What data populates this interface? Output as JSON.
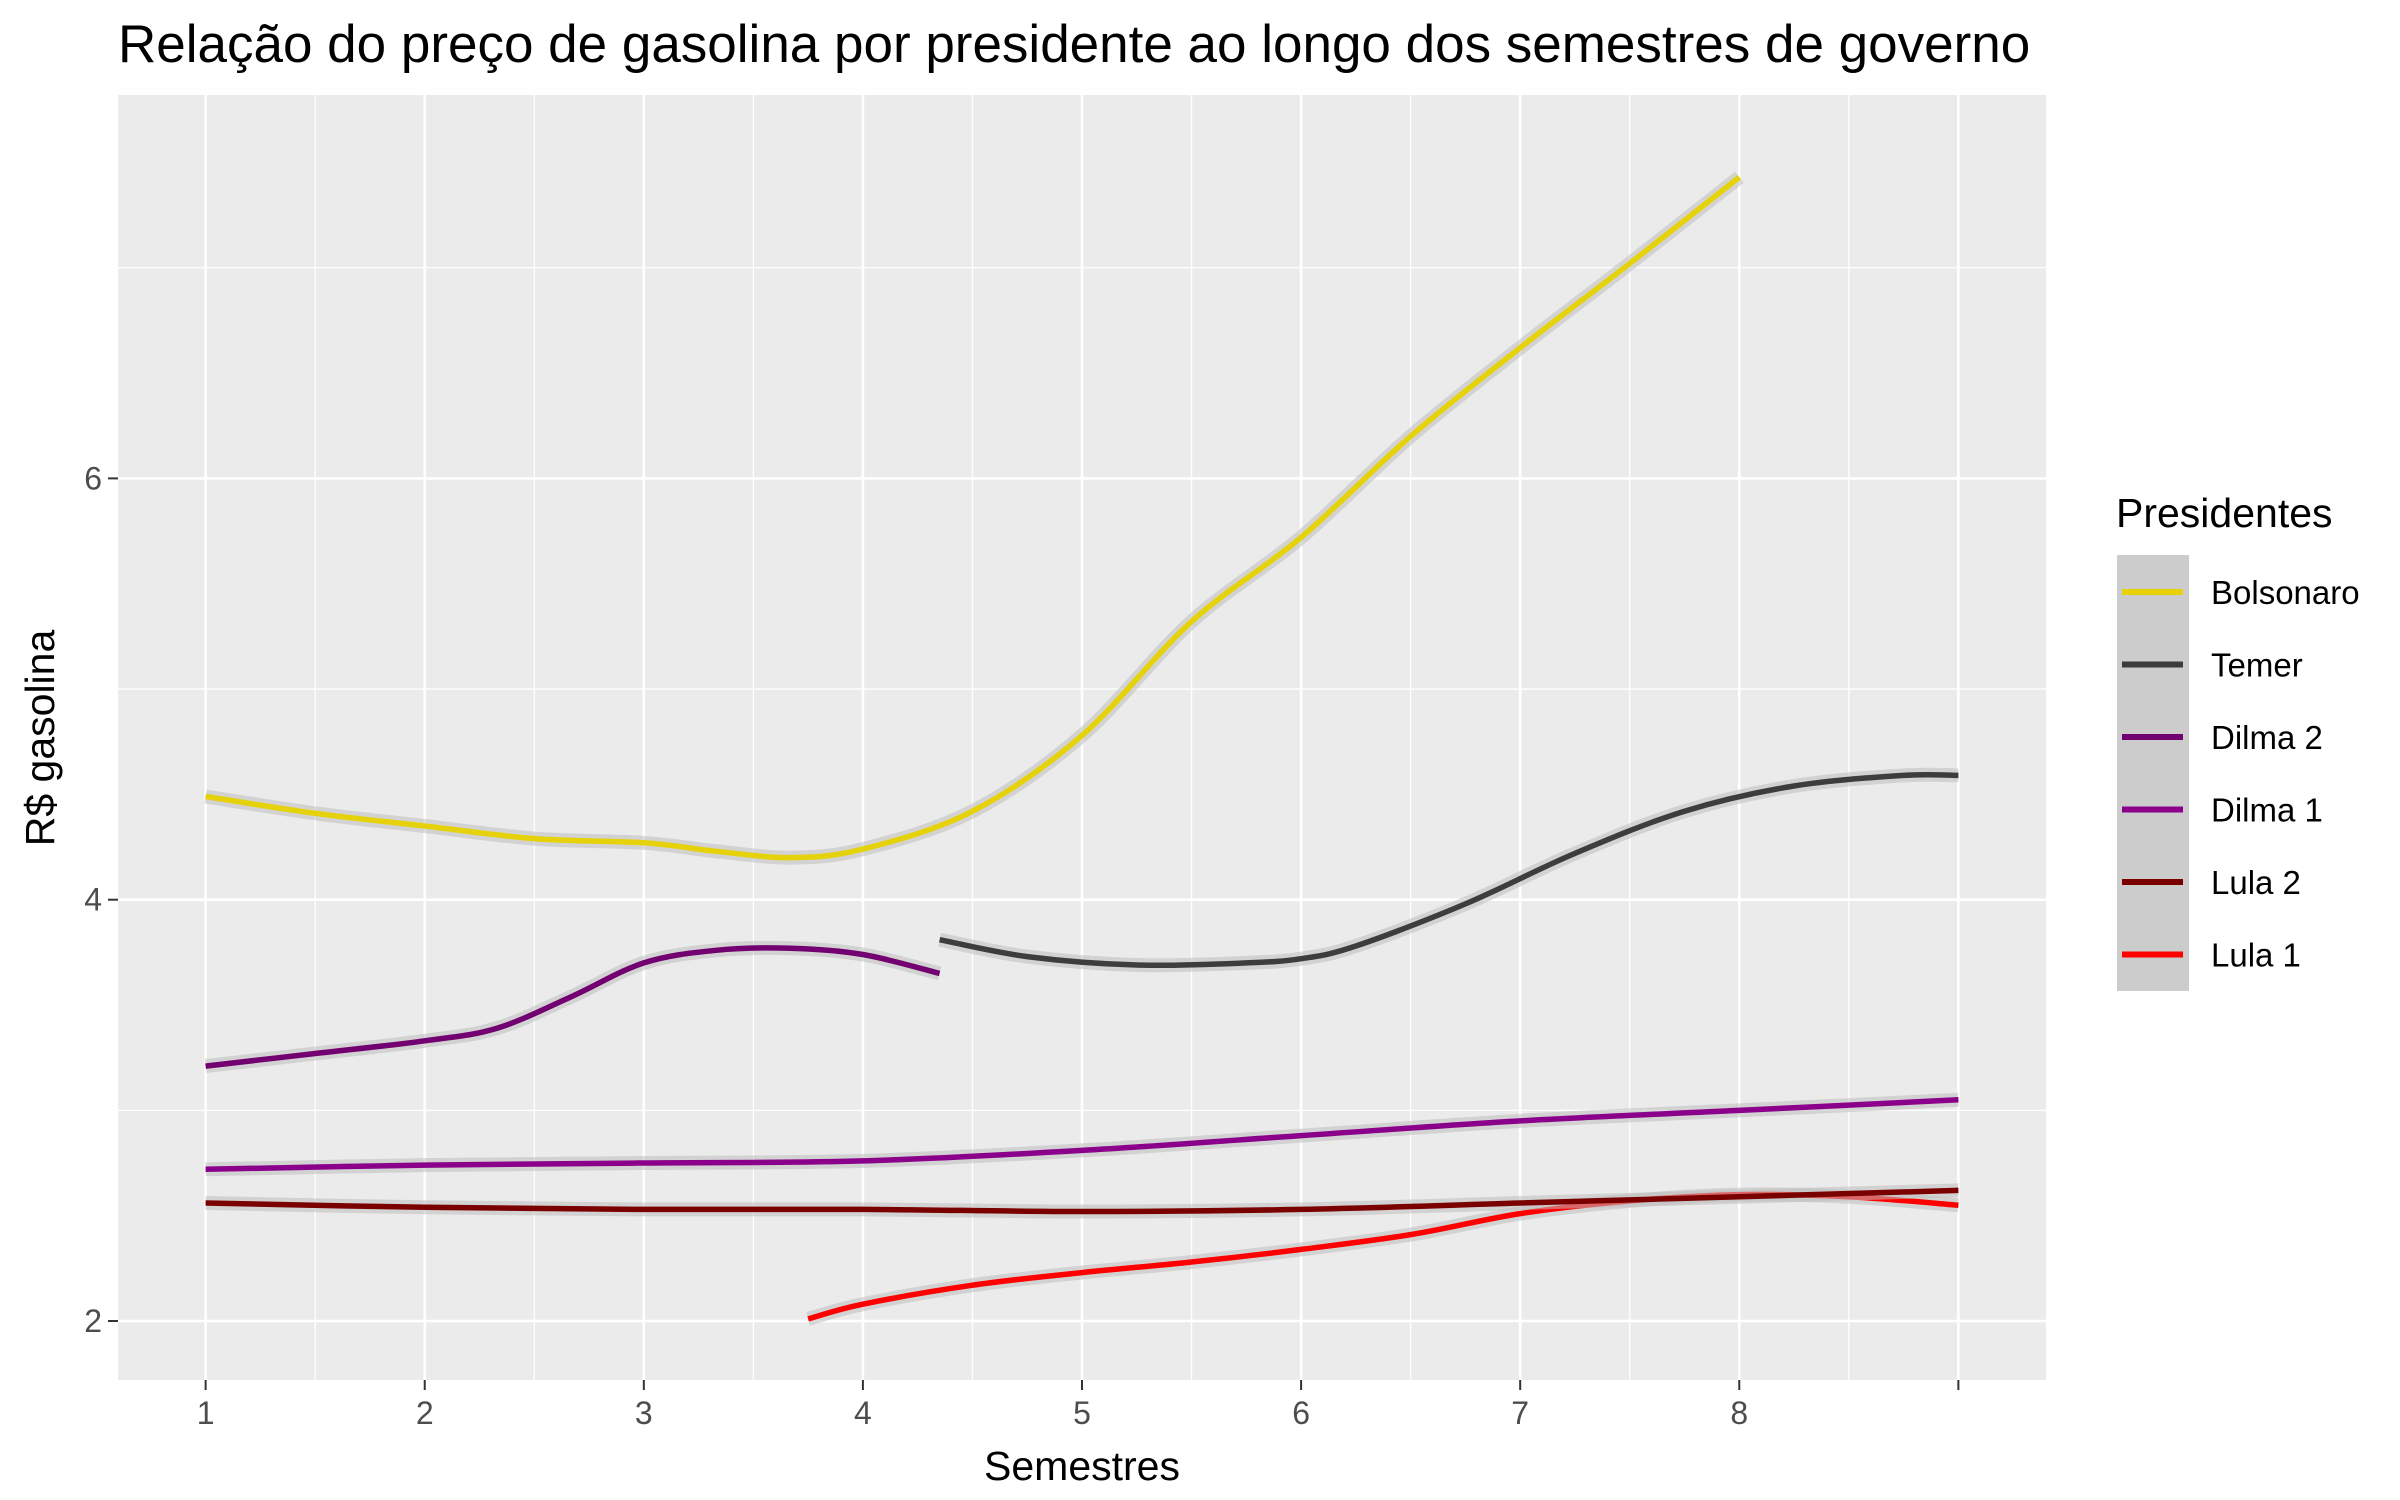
{
  "chart_data": {
    "type": "line",
    "title": "Relação do preço de gasolina por presidente ao longo dos semestres de governo",
    "xlabel": "Semestres",
    "ylabel": "R$ gasolina",
    "xlim": [
      0.6,
      9.4
    ],
    "ylim": [
      1.72,
      7.82
    ],
    "x_ticks": [
      1,
      2,
      3,
      4,
      5,
      6,
      7,
      8
    ],
    "x_tick_labels": [
      "1",
      "2",
      "3",
      "4",
      "5",
      "6",
      "7",
      "8"
    ],
    "y_ticks": [
      2,
      4,
      6
    ],
    "y_tick_labels": [
      "2",
      "4",
      "6"
    ],
    "grid": true,
    "legend_title": "Presidentes",
    "legend_position": "right",
    "series": [
      {
        "name": "Bolsonaro",
        "color": "#E6D20A",
        "x": [
          1,
          1.5,
          2,
          2.5,
          3,
          3.33,
          3.67,
          4,
          4.5,
          5,
          5.5,
          6,
          6.5,
          7,
          7.5,
          8
        ],
        "y": [
          4.49,
          4.41,
          4.35,
          4.29,
          4.27,
          4.23,
          4.2,
          4.24,
          4.42,
          4.78,
          5.32,
          5.72,
          6.2,
          6.62,
          7.02,
          7.43
        ]
      },
      {
        "name": "Temer",
        "color": "#3d3d3d",
        "x": [
          4.35,
          4.75,
          5.25,
          5.75,
          6.0,
          6.25,
          6.75,
          7.25,
          7.75,
          8.25,
          8.75,
          9.0
        ],
        "y": [
          3.81,
          3.73,
          3.69,
          3.7,
          3.72,
          3.78,
          3.98,
          4.22,
          4.42,
          4.54,
          4.59,
          4.59
        ]
      },
      {
        "name": "Dilma 2",
        "color": "#720070",
        "x": [
          1,
          1.5,
          2,
          2.33,
          2.67,
          3,
          3.33,
          3.67,
          4,
          4.35
        ],
        "y": [
          3.21,
          3.27,
          3.33,
          3.39,
          3.54,
          3.7,
          3.76,
          3.77,
          3.74,
          3.65
        ]
      },
      {
        "name": "Dilma 1",
        "color": "#8B008B",
        "x": [
          1,
          2,
          3,
          4,
          5,
          6,
          7,
          8,
          9
        ],
        "y": [
          2.72,
          2.74,
          2.75,
          2.76,
          2.81,
          2.88,
          2.95,
          3.0,
          3.05
        ]
      },
      {
        "name": "Lula 2",
        "color": "#7A0000",
        "x": [
          1,
          2,
          3,
          4,
          5,
          6,
          7,
          8,
          9
        ],
        "y": [
          2.56,
          2.54,
          2.53,
          2.53,
          2.52,
          2.53,
          2.56,
          2.59,
          2.62
        ]
      },
      {
        "name": "Lula 1",
        "color": "#FF0000",
        "x": [
          3.75,
          4,
          4.5,
          5,
          5.5,
          6,
          6.5,
          7,
          7.5,
          8,
          8.5,
          9
        ],
        "y": [
          2.01,
          2.08,
          2.17,
          2.23,
          2.28,
          2.34,
          2.41,
          2.51,
          2.57,
          2.6,
          2.59,
          2.55
        ]
      }
    ]
  }
}
